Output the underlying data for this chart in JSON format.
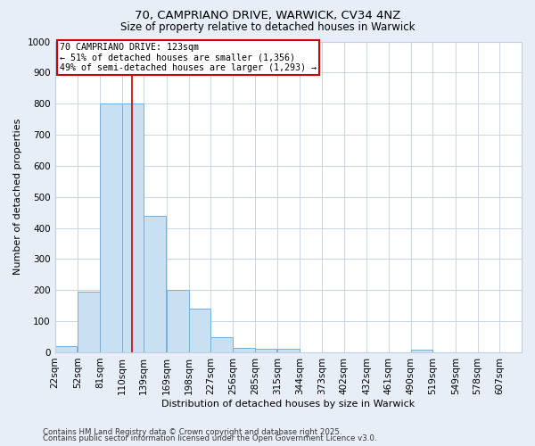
{
  "title1": "70, CAMPRIANO DRIVE, WARWICK, CV34 4NZ",
  "title2": "Size of property relative to detached houses in Warwick",
  "xlabel": "Distribution of detached houses by size in Warwick",
  "ylabel": "Number of detached properties",
  "bin_labels": [
    "22sqm",
    "52sqm",
    "81sqm",
    "110sqm",
    "139sqm",
    "169sqm",
    "198sqm",
    "227sqm",
    "256sqm",
    "285sqm",
    "315sqm",
    "344sqm",
    "373sqm",
    "402sqm",
    "432sqm",
    "461sqm",
    "490sqm",
    "519sqm",
    "549sqm",
    "578sqm",
    "607sqm"
  ],
  "bin_edges": [
    22,
    52,
    81,
    110,
    139,
    169,
    198,
    227,
    256,
    285,
    315,
    344,
    373,
    402,
    432,
    461,
    490,
    519,
    549,
    578,
    607
  ],
  "bar_heights": [
    20,
    195,
    800,
    800,
    440,
    200,
    140,
    48,
    15,
    10,
    10,
    0,
    0,
    0,
    0,
    0,
    8,
    0,
    0,
    0,
    0
  ],
  "bar_color": "#c9dff2",
  "bar_edge_color": "#7aafd4",
  "property_size": 123,
  "vline_color": "#cc0000",
  "annotation_title": "70 CAMPRIANO DRIVE: 123sqm",
  "annotation_line1": "← 51% of detached houses are smaller (1,356)",
  "annotation_line2": "49% of semi-detached houses are larger (1,293) →",
  "annotation_box_color": "#ffffff",
  "annotation_box_edge": "#cc0000",
  "ylim": [
    0,
    1000
  ],
  "yticks": [
    0,
    100,
    200,
    300,
    400,
    500,
    600,
    700,
    800,
    900,
    1000
  ],
  "footer1": "Contains HM Land Registry data © Crown copyright and database right 2025.",
  "footer2": "Contains public sector information licensed under the Open Government Licence v3.0.",
  "bg_color": "#e8eef8",
  "plot_bg_color": "#ffffff",
  "grid_color": "#c0cfe0"
}
